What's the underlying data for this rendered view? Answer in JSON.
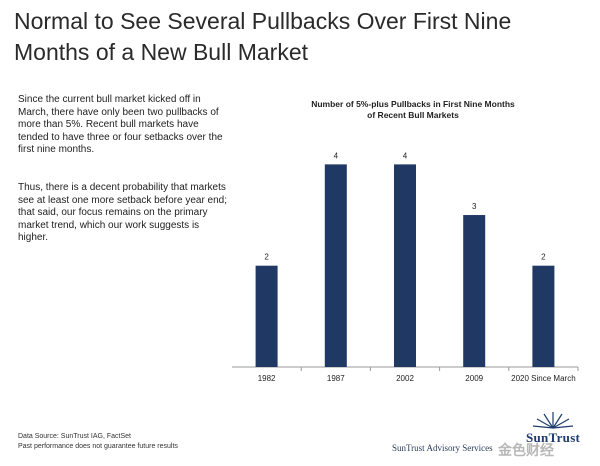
{
  "header": {
    "title_lines": [
      "Normal to See Several Pullbacks Over First Nine",
      "Months of a New Bull Market"
    ]
  },
  "commentary": {
    "paragraph1": "Since the current bull market kicked off in March, there have only been two pullbacks of more than 5%. Recent bull markets have tended to have three or four setbacks over the first nine months.",
    "paragraph2": "Thus, there is a decent probability that markets see at least one more setback before year end; that said, our focus remains on the primary market trend, which our work suggests is higher."
  },
  "chart_data": {
    "type": "bar",
    "title_lines": [
      "Number of 5%-plus Pullbacks in First Nine Months",
      "of Recent Bull Markets"
    ],
    "categories": [
      "1982",
      "1987",
      "2002",
      "2009",
      "2020 Since March"
    ],
    "values": [
      2,
      4,
      4,
      3,
      2
    ],
    "data_labels": [
      "2",
      "4",
      "4",
      "3",
      "2"
    ],
    "ylim": [
      0,
      4.6
    ],
    "bar_color": "#1f3864",
    "grid": false,
    "legend": "none"
  },
  "footer": {
    "source": "Data Source: SunTrust IAG, FactSet",
    "disclaimer": "Past performance does not guarantee future results"
  },
  "branding": {
    "advisory_name": "SunTrust Advisory Services",
    "logo_text": "SunTrust",
    "logo_color": "#1e3a6e",
    "watermark": "金色财经"
  }
}
